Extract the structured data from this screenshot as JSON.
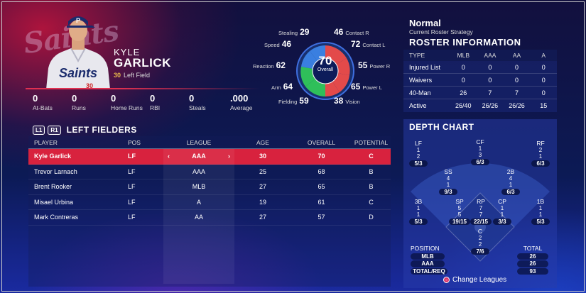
{
  "player": {
    "first_name": "KYLE",
    "last_name": "GARLICK",
    "number": "30",
    "position": "Left Field",
    "team_logo": "Saints",
    "jersey_text": "Saints"
  },
  "season_stats": [
    {
      "value": "0",
      "label": "At-Bats"
    },
    {
      "value": "0",
      "label": "Runs"
    },
    {
      "value": "0",
      "label": "Home Runs"
    },
    {
      "value": "0",
      "label": "RBI"
    },
    {
      "value": "0",
      "label": "Steals"
    },
    {
      "value": ".000",
      "label": "Average"
    }
  ],
  "ratings": {
    "overall": "70",
    "overall_label": "Overall",
    "stealing": {
      "label": "Stealing",
      "value": "29"
    },
    "speed": {
      "label": "Speed",
      "value": "46"
    },
    "reaction": {
      "label": "Reaction",
      "value": "62"
    },
    "arm": {
      "label": "Arm",
      "value": "64"
    },
    "fielding": {
      "label": "Fielding",
      "value": "59"
    },
    "contact_r": {
      "label": "Contact R",
      "value": "46"
    },
    "contact_l": {
      "label": "Contact L",
      "value": "72"
    },
    "power_r": {
      "label": "Power R",
      "value": "55"
    },
    "power_l": {
      "label": "Power L",
      "value": "65"
    },
    "vision": {
      "label": "Vision",
      "value": "38"
    }
  },
  "left_fielders": {
    "tag_l1": "L1",
    "tag_r1": "R1",
    "title": "LEFT FIELDERS",
    "headers": [
      "PLAYER",
      "POS",
      "LEAGUE",
      "AGE",
      "OVERALL",
      "POTENTIAL"
    ],
    "rows": [
      [
        "Kyle Garlick",
        "LF",
        "AAA",
        "30",
        "70",
        "C"
      ],
      [
        "Trevor Larnach",
        "LF",
        "AAA",
        "25",
        "68",
        "B"
      ],
      [
        "Brent Rooker",
        "LF",
        "MLB",
        "27",
        "65",
        "B"
      ],
      [
        "Misael Urbina",
        "LF",
        "A",
        "19",
        "61",
        "C"
      ],
      [
        "Mark Contreras",
        "LF",
        "AA",
        "27",
        "57",
        "D"
      ]
    ]
  },
  "strategy": {
    "name": "Normal",
    "subtitle": "Current Roster Strategy"
  },
  "roster_info": {
    "title": "ROSTER INFORMATION",
    "headers": [
      "TYPE",
      "MLB",
      "AAA",
      "AA",
      "A"
    ],
    "rows": [
      [
        "Injured List",
        "0",
        "0",
        "0",
        "0"
      ],
      [
        "Waivers",
        "0",
        "0",
        "0",
        "0"
      ],
      [
        "40-Man",
        "26",
        "7",
        "7",
        "0"
      ],
      [
        "Active",
        "26/40",
        "26/26",
        "26/26",
        "15"
      ]
    ]
  },
  "depth_chart": {
    "title": "DEPTH CHART",
    "positions": {
      "LF": {
        "name": "LF",
        "a": "1",
        "b": "2",
        "t": "5/3"
      },
      "CF": {
        "name": "CF",
        "a": "1",
        "b": "3",
        "t": "6/3"
      },
      "RF": {
        "name": "RF",
        "a": "2",
        "b": "1",
        "t": "6/3"
      },
      "SS": {
        "name": "SS",
        "a": "4",
        "b": "1",
        "t": "9/3"
      },
      "2B": {
        "name": "2B",
        "a": "4",
        "b": "1",
        "t": "6/3"
      },
      "3B": {
        "name": "3B",
        "a": "1",
        "b": "1",
        "t": "5/3"
      },
      "SP": {
        "name": "SP",
        "a": "5",
        "b": "5",
        "t": "19/15"
      },
      "RP": {
        "name": "RP",
        "a": "7",
        "b": "7",
        "t": "22/15"
      },
      "CP": {
        "name": "CP",
        "a": "1",
        "b": "1",
        "t": "3/3"
      },
      "1B": {
        "name": "1B",
        "a": "1",
        "b": "1",
        "t": "5/3"
      },
      "C": {
        "name": "C",
        "a": "2",
        "b": "2",
        "t": "7/6"
      }
    },
    "legend_position": {
      "header": "POSITION",
      "rows": [
        "MLB",
        "AAA",
        "TOTAL/REQ"
      ]
    },
    "legend_total": {
      "header": "TOTAL",
      "rows": [
        "26",
        "26",
        "93"
      ]
    },
    "change_leagues": "Change Leagues"
  }
}
